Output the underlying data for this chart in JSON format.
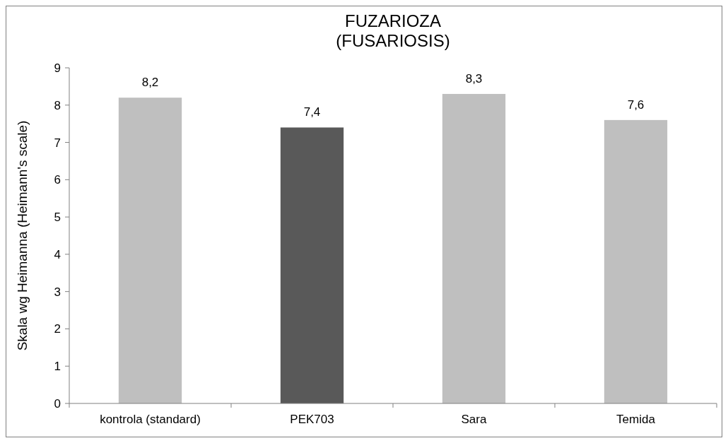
{
  "chart_data": {
    "type": "bar",
    "title": "FUZARIOZA\n(FUSARIOSIS)",
    "ylabel": "Skala wg Heimanna (Heimann's scale)",
    "categories": [
      "kontrola (standard)",
      "PEK703",
      "Sara",
      "Temida"
    ],
    "values": [
      8.2,
      7.4,
      8.3,
      7.6
    ],
    "colors": [
      "#bfbfbf",
      "#595959",
      "#bfbfbf",
      "#bfbfbf"
    ],
    "value_labels": [
      "8,2",
      "7,4",
      "8,3",
      "7,6"
    ],
    "ylim": [
      0,
      9
    ],
    "yticks": [
      0,
      1,
      2,
      3,
      4,
      5,
      6,
      7,
      8,
      9
    ],
    "grid": false
  }
}
